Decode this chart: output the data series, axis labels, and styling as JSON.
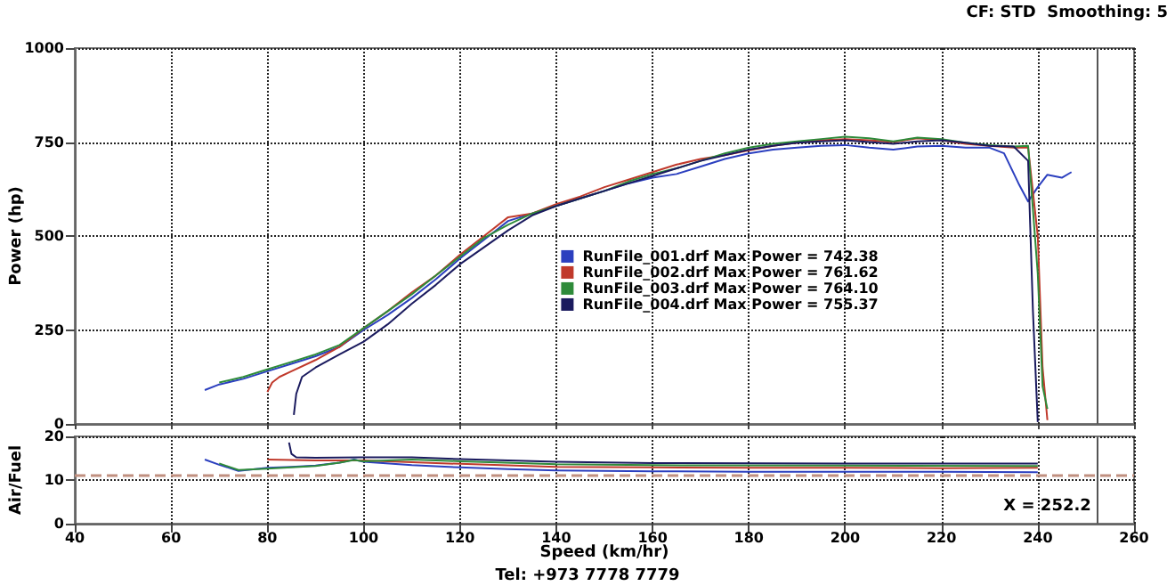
{
  "chart_data": [
    {
      "type": "line",
      "ylabel": "Power (hp)",
      "annotations": [
        "CF: STD  Smoothing: 5"
      ],
      "xlim": [
        40,
        260
      ],
      "xticks": [
        40,
        60,
        80,
        100,
        120,
        140,
        160,
        180,
        200,
        220,
        240,
        260
      ],
      "ylim": [
        0,
        1000
      ],
      "yticks": [
        0,
        250,
        500,
        750,
        1000
      ],
      "tick_labels": "y",
      "grid": true,
      "legend": "center",
      "marker": "none",
      "ref_lines": [
        {
          "axis": "x",
          "value": 252.2,
          "color": "#555555"
        }
      ],
      "series": [
        {
          "name": "RunFile_001.drf Max Power = 742.38",
          "color": "#2b3fbf",
          "x": [
            67,
            70,
            75,
            80,
            85,
            90,
            95,
            100,
            105,
            110,
            115,
            120,
            125,
            130,
            135,
            140,
            145,
            150,
            155,
            160,
            165,
            170,
            175,
            180,
            185,
            190,
            195,
            200,
            205,
            210,
            215,
            220,
            225,
            230,
            233,
            236,
            238,
            240,
            242,
            245,
            247
          ],
          "values": [
            90,
            105,
            120,
            140,
            160,
            180,
            205,
            250,
            290,
            335,
            385,
            440,
            490,
            540,
            560,
            580,
            600,
            620,
            640,
            655,
            665,
            685,
            705,
            720,
            730,
            735,
            740,
            742,
            735,
            730,
            738,
            740,
            735,
            735,
            720,
            640,
            592,
            630,
            663,
            655,
            670
          ]
        },
        {
          "name": "RunFile_002.drf Max Power = 761.62",
          "color": "#c0392b",
          "x": [
            80,
            81,
            82.5,
            85,
            90,
            95,
            100,
            105,
            110,
            115,
            120,
            125,
            130,
            135,
            140,
            145,
            150,
            155,
            160,
            165,
            170,
            175,
            180,
            185,
            190,
            195,
            200,
            205,
            210,
            215,
            220,
            225,
            230,
            235,
            238,
            240,
            241,
            242
          ],
          "values": [
            85,
            110,
            125,
            140,
            170,
            205,
            255,
            300,
            350,
            395,
            450,
            500,
            550,
            560,
            585,
            605,
            630,
            650,
            670,
            690,
            705,
            715,
            728,
            740,
            748,
            755,
            758,
            755,
            750,
            760,
            755,
            745,
            740,
            735,
            735,
            500,
            150,
            10
          ]
        },
        {
          "name": "RunFile_003.drf Max Power = 764.10",
          "color": "#2e8b3a",
          "x": [
            70,
            75,
            80,
            85,
            90,
            95,
            100,
            105,
            110,
            115,
            120,
            125,
            130,
            135,
            140,
            145,
            150,
            155,
            160,
            165,
            170,
            175,
            180,
            185,
            190,
            195,
            200,
            205,
            210,
            215,
            220,
            225,
            230,
            235,
            238,
            240,
            241,
            242
          ],
          "values": [
            110,
            125,
            145,
            165,
            185,
            210,
            255,
            300,
            345,
            395,
            445,
            495,
            530,
            560,
            580,
            600,
            620,
            645,
            665,
            680,
            700,
            720,
            735,
            745,
            752,
            758,
            764,
            760,
            752,
            762,
            758,
            748,
            742,
            738,
            740,
            400,
            100,
            40
          ]
        },
        {
          "name": "RunFile_004.drf Max Power = 755.37",
          "color": "#1a1a5e",
          "x": [
            85.5,
            86,
            87.2,
            90,
            95,
            100,
            105,
            110,
            115,
            120,
            125,
            130,
            135,
            140,
            145,
            150,
            155,
            160,
            165,
            170,
            175,
            180,
            185,
            190,
            195,
            200,
            205,
            210,
            215,
            220,
            225,
            230,
            235,
            238,
            239,
            240
          ],
          "values": [
            24,
            80,
            125,
            150,
            185,
            219,
            265,
            320,
            370,
            425,
            470,
            515,
            555,
            580,
            600,
            620,
            640,
            660,
            680,
            700,
            715,
            730,
            740,
            748,
            752,
            755,
            750,
            745,
            752,
            755,
            748,
            740,
            738,
            700,
            300,
            5
          ]
        }
      ]
    },
    {
      "type": "line",
      "xlabel": "Speed (km/hr)",
      "ylabel": "Air/Fuel",
      "annotations": [
        "Tel: +973 7778 7779"
      ],
      "xlim": [
        40,
        260
      ],
      "xticks": [
        40,
        60,
        80,
        100,
        120,
        140,
        160,
        180,
        200,
        220,
        240,
        260
      ],
      "ylim": [
        0,
        20
      ],
      "yticks": [
        0,
        10,
        20
      ],
      "grid": true,
      "marker": "none",
      "ref_lines": [
        {
          "axis": "y",
          "value": 11,
          "color": "#c09080",
          "line_style": "dashed"
        },
        {
          "axis": "x",
          "value": 252.2,
          "label": "X = 252.2",
          "color": "#555555"
        }
      ],
      "series": [
        {
          "color": "#2b3fbf",
          "x": [
            67,
            70,
            74,
            80,
            85,
            90,
            95,
            98,
            100,
            110,
            120,
            130,
            140,
            160,
            180,
            200,
            220,
            240
          ],
          "values": [
            14.7,
            13.5,
            12.1,
            12.8,
            13,
            13.3,
            14,
            14.7,
            14.2,
            13.4,
            12.9,
            12.5,
            12.2,
            12,
            11.9,
            11.9,
            11.9,
            11.8
          ]
        },
        {
          "color": "#c0392b",
          "x": [
            80,
            85,
            90,
            95,
            100,
            110,
            120,
            140,
            160,
            180,
            200,
            220,
            240
          ],
          "values": [
            14.7,
            14.6,
            14.5,
            14.5,
            14.5,
            14.1,
            13.7,
            13,
            12.9,
            12.8,
            12.8,
            12.7,
            12.8
          ]
        },
        {
          "color": "#2e8b3a",
          "x": [
            70,
            74,
            80,
            90,
            95,
            98,
            100,
            110,
            120,
            140,
            160,
            200,
            240
          ],
          "values": [
            13.8,
            12.3,
            12.6,
            13.2,
            14,
            14.6,
            14.3,
            14.7,
            14.3,
            13.6,
            13.4,
            13.3,
            13.2
          ]
        },
        {
          "color": "#1a1a5e",
          "x": [
            84.5,
            85,
            86,
            90,
            100,
            110,
            120,
            140,
            160,
            200,
            240
          ],
          "values": [
            18.6,
            16,
            15.2,
            15.1,
            15.2,
            15.2,
            14.8,
            14.2,
            13.9,
            13.8,
            13.8
          ]
        }
      ]
    }
  ]
}
